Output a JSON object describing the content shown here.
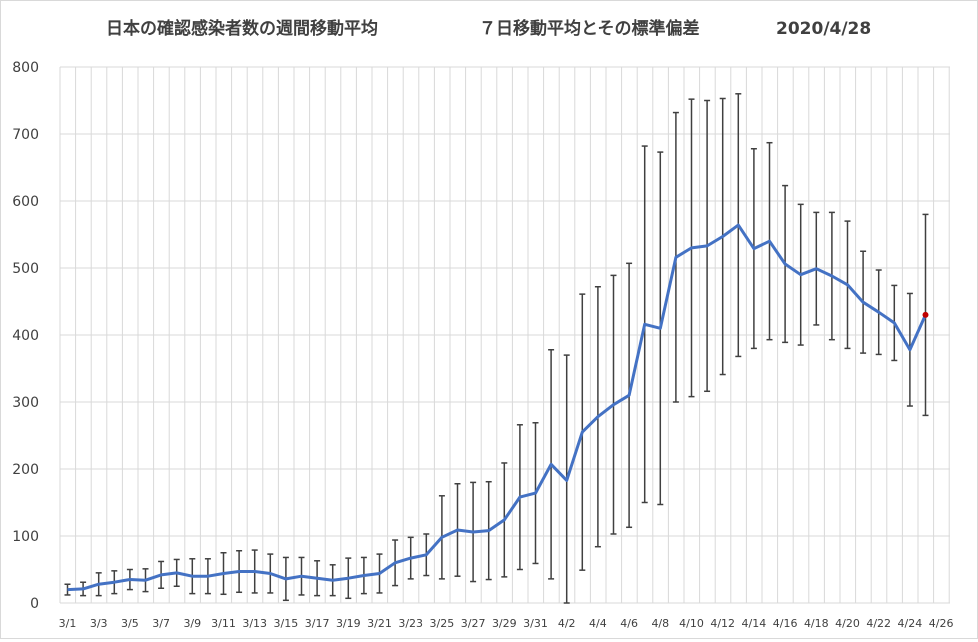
{
  "chart_data": {
    "type": "line",
    "title": "日本の確認感染者数の週間移動平均",
    "subtitle": "７日移動平均とその標準偏差",
    "date_label": "2020/4/28",
    "xlabel": "",
    "ylabel": "",
    "ylim": [
      0,
      800
    ],
    "yticks": [
      0,
      100,
      200,
      300,
      400,
      500,
      600,
      700,
      800
    ],
    "x_tick_labels": [
      "3/1",
      "3/3",
      "3/5",
      "3/7",
      "3/9",
      "3/11",
      "3/13",
      "3/15",
      "3/17",
      "3/19",
      "3/21",
      "3/23",
      "3/25",
      "3/27",
      "3/29",
      "3/31",
      "4/2",
      "4/4",
      "4/6",
      "4/8",
      "4/10",
      "4/12",
      "4/14",
      "4/16",
      "4/18",
      "4/20",
      "4/22",
      "4/24",
      "4/26"
    ],
    "grid": true,
    "legend": "none",
    "colors": {
      "line": "#4472C4",
      "error_bar": "#404040",
      "last_point": "#C00000",
      "grid": "#d9d9d9"
    },
    "categories": [
      "3/1",
      "3/2",
      "3/3",
      "3/4",
      "3/5",
      "3/6",
      "3/7",
      "3/8",
      "3/9",
      "3/10",
      "3/11",
      "3/12",
      "3/13",
      "3/14",
      "3/15",
      "3/16",
      "3/17",
      "3/18",
      "3/19",
      "3/20",
      "3/21",
      "3/22",
      "3/23",
      "3/24",
      "3/25",
      "3/26",
      "3/27",
      "3/28",
      "3/29",
      "3/30",
      "3/31",
      "4/1",
      "4/2",
      "4/3",
      "4/4",
      "4/5",
      "4/6",
      "4/7",
      "4/8",
      "4/9",
      "4/10",
      "4/11",
      "4/12",
      "4/13",
      "4/14",
      "4/15",
      "4/16",
      "4/17",
      "4/18",
      "4/19",
      "4/20",
      "4/21",
      "4/22",
      "4/23",
      "4/24",
      "4/25"
    ],
    "series": [
      {
        "values": [
          20,
          21,
          28,
          31,
          35,
          34,
          42,
          45,
          40,
          40,
          44,
          47,
          47,
          44,
          36,
          40,
          37,
          34,
          37,
          41,
          44,
          60,
          67,
          72,
          98,
          109,
          106,
          108,
          124,
          158,
          164,
          207,
          183,
          255,
          278,
          296,
          310,
          416,
          410,
          516,
          530,
          533,
          547,
          564,
          529,
          540,
          506,
          490,
          499,
          488,
          475,
          449,
          434,
          418,
          378,
          430
        ],
        "error_high": [
          28,
          31,
          45,
          48,
          50,
          51,
          62,
          65,
          66,
          66,
          75,
          78,
          79,
          73,
          68,
          68,
          63,
          57,
          67,
          68,
          73,
          94,
          98,
          103,
          160,
          178,
          180,
          181,
          209,
          266,
          269,
          378,
          370,
          461,
          472,
          489,
          507,
          682,
          673,
          732,
          752,
          750,
          753,
          760,
          678,
          687,
          623,
          595,
          583,
          583,
          570,
          525,
          497,
          474,
          462,
          580
        ]
      }
    ]
  }
}
